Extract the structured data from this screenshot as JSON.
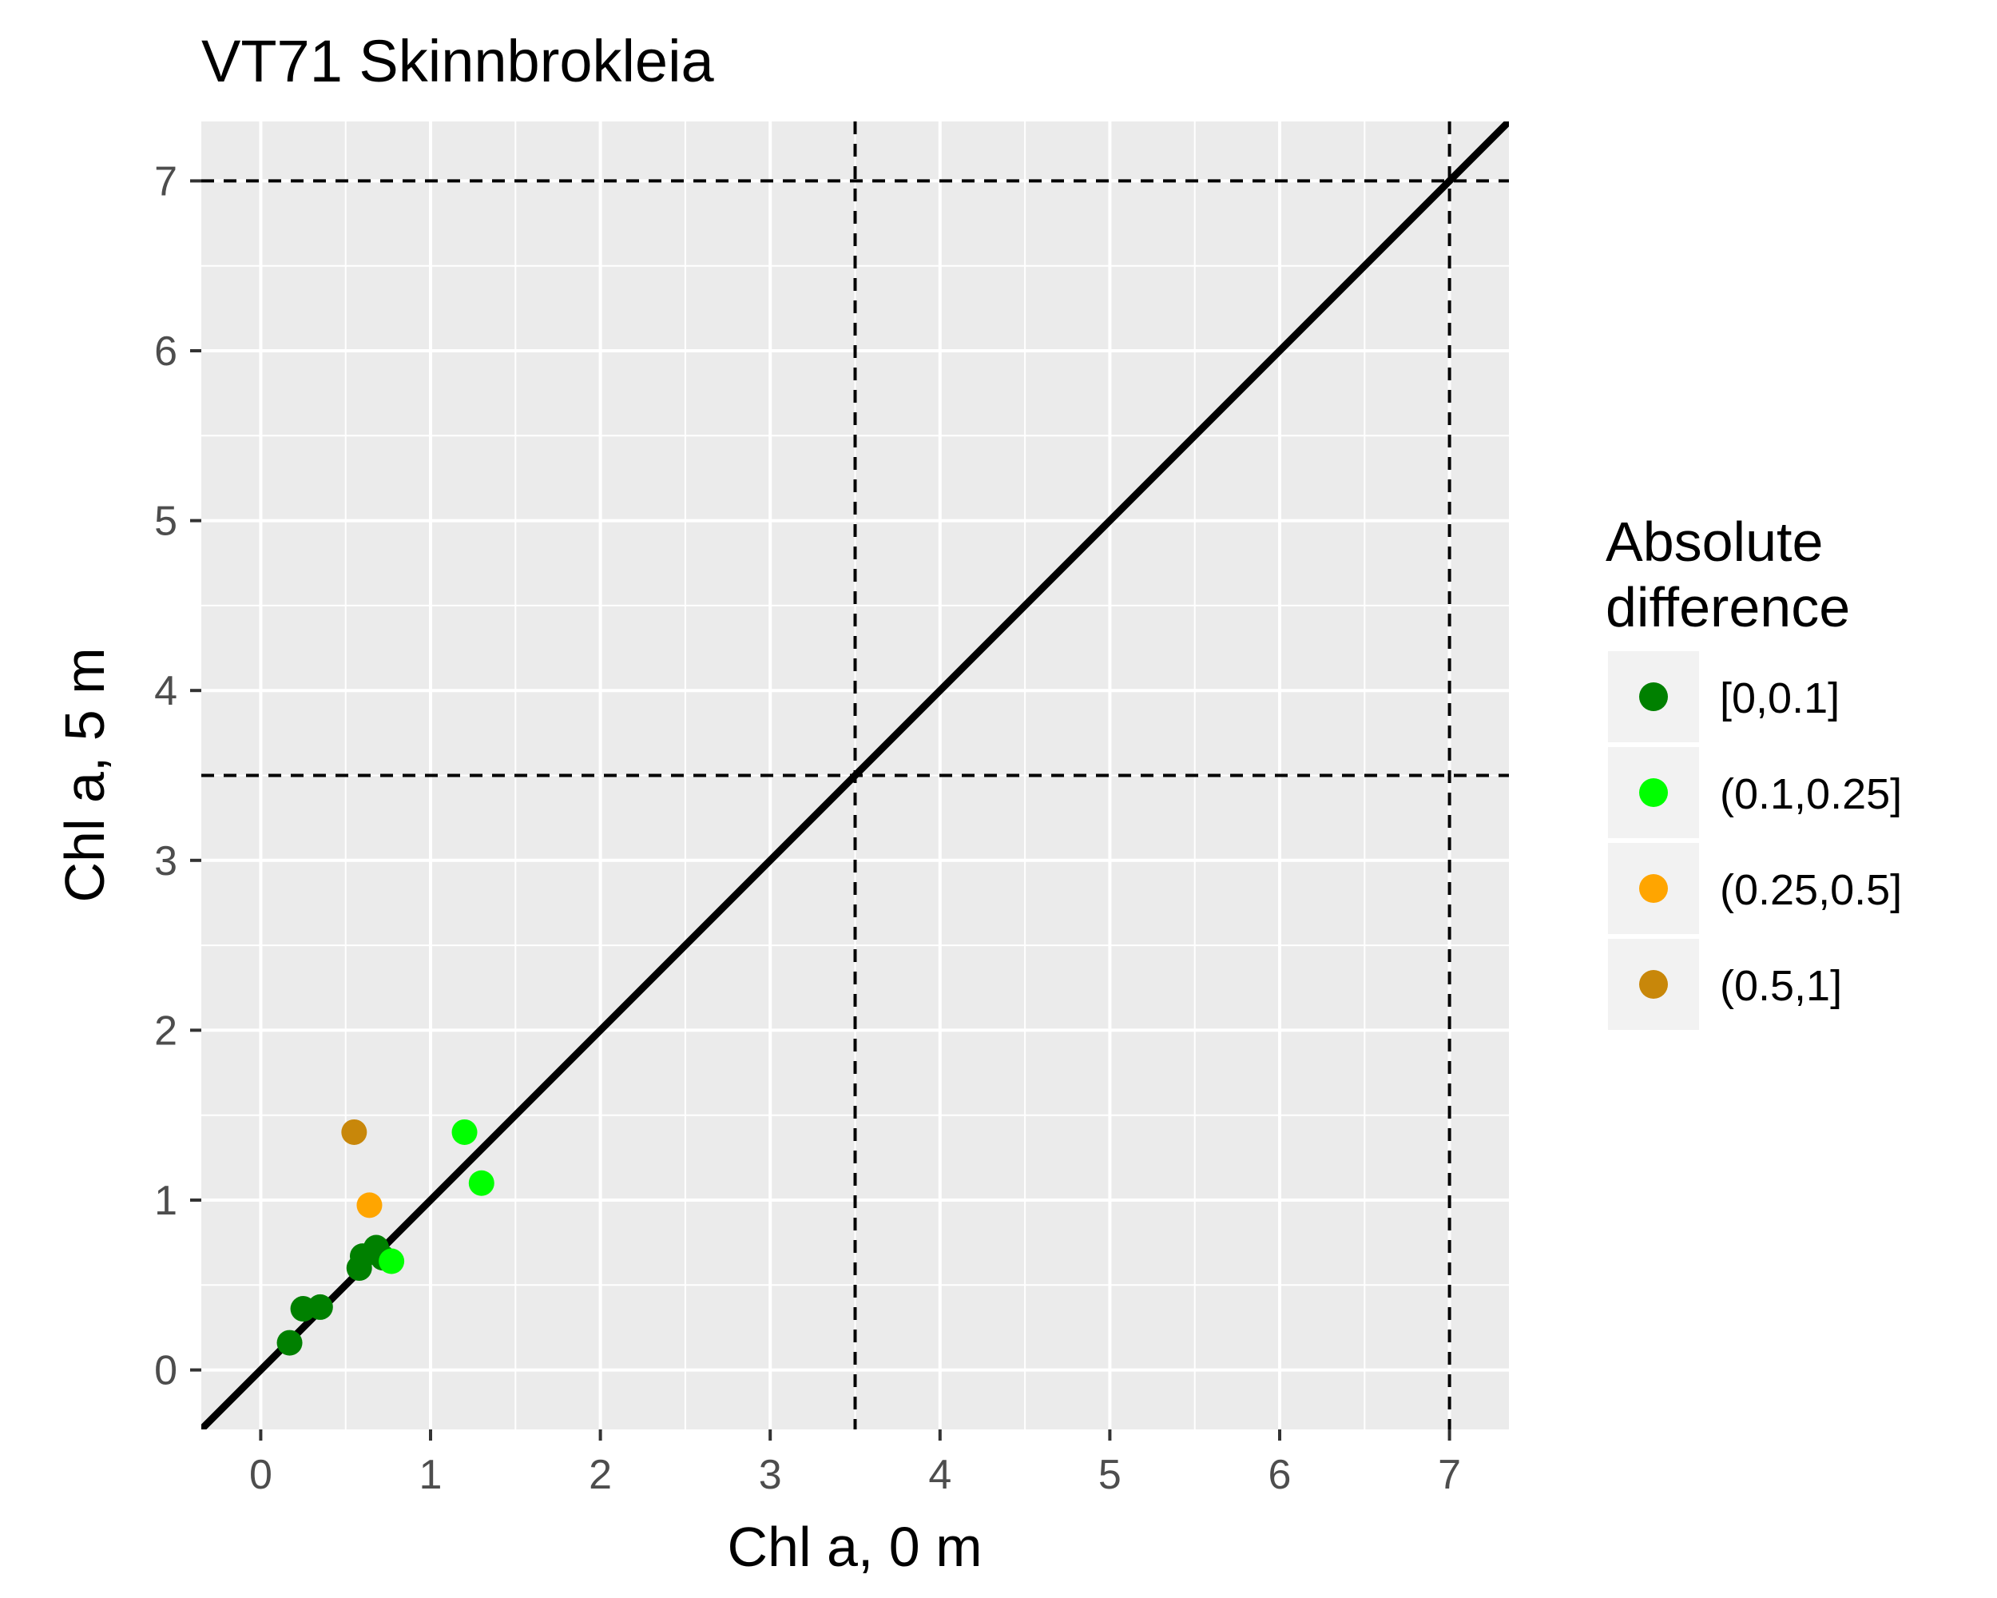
{
  "chart_data": {
    "type": "scatter",
    "title": "VT71 Skinnbrokleia",
    "xlabel": "Chl a, 0 m",
    "ylabel": "Chl a, 5 m",
    "xlim": [
      -0.35,
      7.35
    ],
    "ylim": [
      -0.35,
      7.35
    ],
    "x_ticks": [
      0,
      1,
      2,
      3,
      4,
      5,
      6,
      7
    ],
    "y_ticks": [
      0,
      1,
      2,
      3,
      4,
      5,
      6,
      7
    ],
    "x_tick_labels": [
      "0",
      "1",
      "2",
      "3",
      "4",
      "5",
      "6",
      "7"
    ],
    "y_tick_labels": [
      "0",
      "1",
      "2",
      "3",
      "4",
      "5",
      "6",
      "7"
    ],
    "grid": true,
    "reference_lines": {
      "identity": "y = x",
      "vertical_dashed": [
        3.5,
        7
      ],
      "horizontal_dashed": [
        3.5,
        7
      ]
    },
    "legend": {
      "title_lines": [
        "Absolute",
        "difference"
      ],
      "placement": "right",
      "entries": [
        {
          "label": "[0,0.1]",
          "color": "#008000"
        },
        {
          "label": "(0.1,0.25]",
          "color": "#00ff00"
        },
        {
          "label": "(0.25,0.5]",
          "color": "#ffa500"
        },
        {
          "label": "(0.5,1]",
          "color": "#c8870a"
        }
      ]
    },
    "series": [
      {
        "name": "[0,0.1]",
        "color": "#008000",
        "points": [
          [
            0.17,
            0.16
          ],
          [
            0.25,
            0.36
          ],
          [
            0.35,
            0.37
          ],
          [
            0.58,
            0.6
          ],
          [
            0.6,
            0.67
          ],
          [
            0.68,
            0.72
          ],
          [
            0.72,
            0.66
          ]
        ]
      },
      {
        "name": "(0.1,0.25]",
        "color": "#00ff00",
        "points": [
          [
            0.77,
            0.64
          ],
          [
            1.2,
            1.4
          ],
          [
            1.3,
            1.1
          ]
        ]
      },
      {
        "name": "(0.25,0.5]",
        "color": "#ffa500",
        "points": [
          [
            0.64,
            0.97
          ]
        ]
      },
      {
        "name": "(0.5,1]",
        "color": "#c8870a",
        "points": [
          [
            0.55,
            1.4
          ]
        ]
      }
    ]
  }
}
